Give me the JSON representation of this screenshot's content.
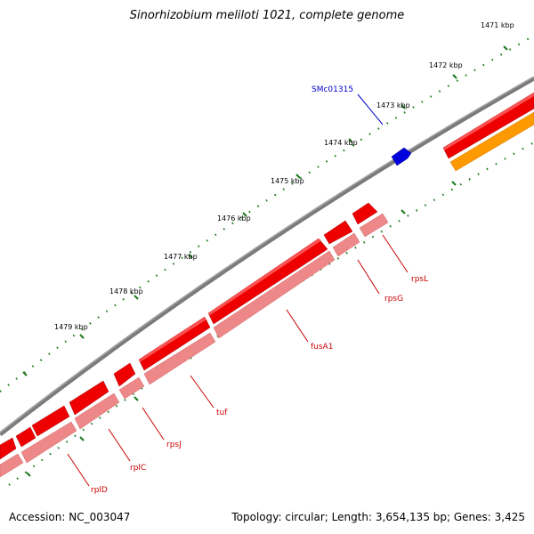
{
  "title": "Sinorhizobium meliloti 1021, complete genome",
  "footer": {
    "accession": "Accession: NC_003047",
    "summary": "Topology: circular; Length: 3,654,135 bp; Genes: 3,425"
  },
  "tick_labels": [
    "1471 kbp",
    "1472 kbp",
    "1473 kbp",
    "1474 kbp",
    "1475 kbp",
    "1476 kbp",
    "1477 kbp",
    "1478 kbp",
    "1479 kbp"
  ],
  "gene_labels": [
    "SMc01315",
    "rpsL",
    "rpsG",
    "fusA1",
    "tuf",
    "rpsJ",
    "rplC",
    "rplD"
  ],
  "colors": {
    "backbone": "#7a7a7a",
    "gene_red": "#ee0000",
    "gene_pink": "#ee8888",
    "gene_orange": "#ff9900",
    "gene_blue": "#0000dd",
    "tick_green": "#1a7a1a",
    "label_red": "#cc0000",
    "label_blue": "#0000cc"
  }
}
